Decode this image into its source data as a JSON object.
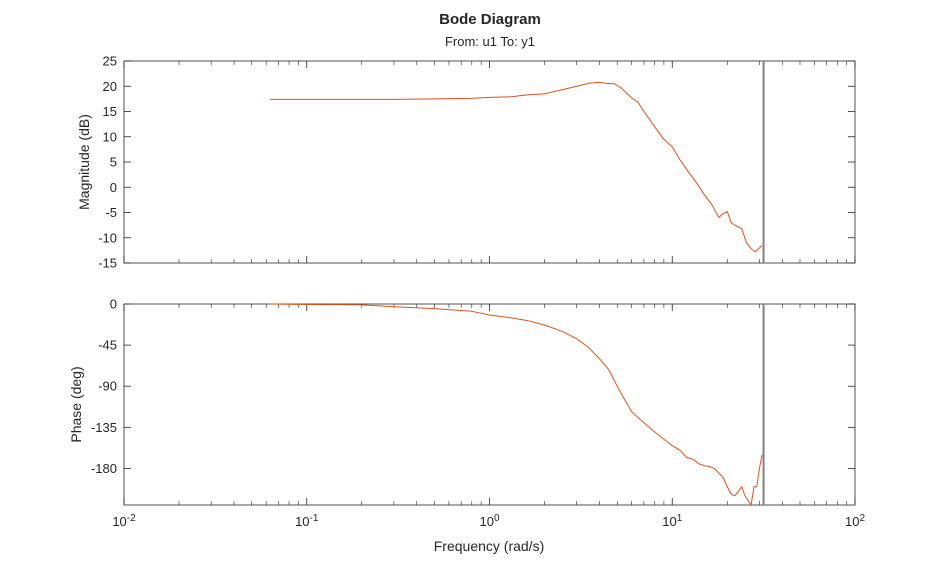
{
  "chart_data": {
    "type": "line",
    "title": "Bode Diagram",
    "subtitle": "From: u1  To: y1",
    "xlabel": "Frequency (rad/s)",
    "x_scale": "log",
    "xlim": [
      0.01,
      100
    ],
    "x_ticks": [
      {
        "base": "10",
        "exp": "-2"
      },
      {
        "base": "10",
        "exp": "-1"
      },
      {
        "base": "10",
        "exp": "0"
      },
      {
        "base": "10",
        "exp": "1"
      },
      {
        "base": "10",
        "exp": "2"
      }
    ],
    "line_color": "#d95319",
    "marker_line": {
      "x": 31.6,
      "color": "#808080"
    },
    "panels": [
      {
        "id": "magnitude",
        "ylabel": "Magnitude (dB)",
        "ylim": [
          -15,
          25
        ],
        "yticks": [
          25,
          20,
          15,
          10,
          5,
          0,
          -5,
          -10,
          -15
        ],
        "ytick_labels": [
          "25",
          "20",
          "15",
          "10",
          "5",
          "0",
          "-5",
          "-10",
          "-15"
        ],
        "series": {
          "x": [
            0.063,
            0.1,
            0.2,
            0.3,
            0.5,
            0.8,
            1.0,
            1.3,
            1.6,
            2.0,
            2.5,
            3.0,
            3.5,
            4.0,
            4.3,
            4.8,
            5.2,
            5.6,
            6.0,
            6.5,
            7.0,
            7.5,
            8.0,
            9.0,
            10.0,
            11.0,
            12.0,
            13.5,
            15.0,
            16.5,
            18.0,
            19.0,
            20.0,
            21.0,
            22.0,
            24.0,
            25.5,
            27.0,
            28.5,
            30.0,
            31.0
          ],
          "y": [
            17.4,
            17.4,
            17.4,
            17.4,
            17.5,
            17.6,
            17.8,
            17.9,
            18.3,
            18.5,
            19.3,
            20.0,
            20.6,
            20.8,
            20.6,
            20.5,
            19.8,
            18.7,
            17.7,
            16.8,
            15.0,
            13.5,
            12.0,
            9.5,
            8.0,
            5.5,
            3.5,
            1.0,
            -1.5,
            -3.5,
            -6.0,
            -5.2,
            -4.8,
            -7.0,
            -7.5,
            -8.2,
            -11.0,
            -12.2,
            -12.8,
            -12.0,
            -11.5
          ]
        }
      },
      {
        "id": "phase",
        "ylabel": "Phase (deg)",
        "ylim": [
          -220,
          0
        ],
        "yticks": [
          0,
          -45,
          -90,
          -135,
          -180
        ],
        "ytick_labels": [
          "0",
          "-45",
          "-90",
          "-135",
          "-180"
        ],
        "series": {
          "x": [
            0.063,
            0.1,
            0.2,
            0.3,
            0.5,
            0.8,
            1.0,
            1.3,
            1.6,
            2.0,
            2.5,
            3.0,
            3.5,
            4.0,
            4.5,
            5.0,
            5.5,
            6.0,
            7.0,
            8.0,
            9.0,
            10.0,
            11.0,
            12.0,
            13.0,
            14.0,
            15.0,
            16.0,
            17.0,
            18.0,
            19.0,
            20.0,
            21.0,
            22.0,
            23.0,
            24.0,
            25.0,
            26.0,
            27.0,
            28.0,
            29.0,
            30.0,
            31.0
          ],
          "y": [
            0,
            -0.5,
            -1,
            -3,
            -5,
            -8,
            -12,
            -15,
            -18,
            -23,
            -30,
            -38,
            -48,
            -60,
            -72,
            -90,
            -105,
            -118,
            -130,
            -140,
            -148,
            -155,
            -160,
            -168,
            -170,
            -175,
            -177,
            -178,
            -180,
            -185,
            -190,
            -200,
            -208,
            -210,
            -205,
            -200,
            -210,
            -215,
            -220,
            -200,
            -200,
            -180,
            -165
          ]
        }
      }
    ]
  }
}
